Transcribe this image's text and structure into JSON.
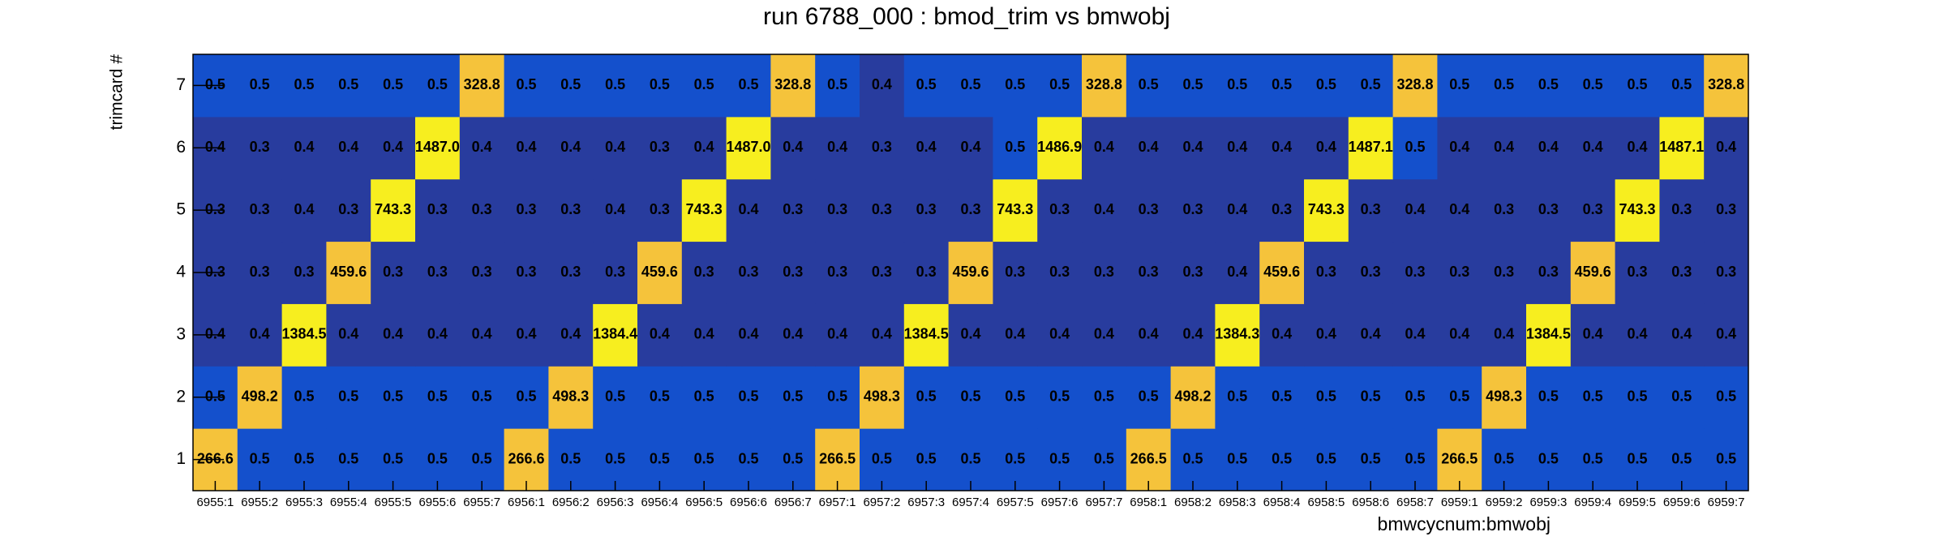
{
  "chart_data": {
    "type": "heatmap",
    "title": "run 6788_000 : bmod_trim vs bmwobj",
    "xlabel": "bmwcycnum:bmwobj",
    "ylabel": "trimcard #",
    "categories": [
      "6955:1",
      "6955:2",
      "6955:3",
      "6955:4",
      "6955:5",
      "6955:6",
      "6955:7",
      "6956:1",
      "6956:2",
      "6956:3",
      "6956:4",
      "6956:5",
      "6956:6",
      "6956:7",
      "6957:1",
      "6957:2",
      "6957:3",
      "6957:4",
      "6957:5",
      "6957:6",
      "6957:7",
      "6958:1",
      "6958:2",
      "6958:3",
      "6958:4",
      "6958:5",
      "6958:6",
      "6958:7",
      "6959:1",
      "6959:2",
      "6959:3",
      "6959:4",
      "6959:5",
      "6959:6",
      "6959:7"
    ],
    "y_categories": [
      "1",
      "2",
      "3",
      "4",
      "5",
      "6",
      "7"
    ],
    "palette": [
      "#283c9e",
      "#1450cc",
      "#f5c33b",
      "#f7ee1f"
    ],
    "values": [
      [
        266.6,
        0.5,
        0.5,
        0.5,
        0.5,
        0.5,
        0.5,
        266.6,
        0.5,
        0.5,
        0.5,
        0.5,
        0.5,
        0.5,
        266.5,
        0.5,
        0.5,
        0.5,
        0.5,
        0.5,
        0.5,
        266.5,
        0.5,
        0.5,
        0.5,
        0.5,
        0.5,
        0.5,
        266.5,
        0.5,
        0.5,
        0.5,
        0.5,
        0.5,
        0.5
      ],
      [
        0.5,
        498.2,
        0.5,
        0.5,
        0.5,
        0.5,
        0.5,
        0.5,
        498.3,
        0.5,
        0.5,
        0.5,
        0.5,
        0.5,
        0.5,
        498.3,
        0.5,
        0.5,
        0.5,
        0.5,
        0.5,
        0.5,
        498.2,
        0.5,
        0.5,
        0.5,
        0.5,
        0.5,
        0.5,
        498.3,
        0.5,
        0.5,
        0.5,
        0.5,
        0.5
      ],
      [
        0.4,
        0.4,
        1384.5,
        0.4,
        0.4,
        0.4,
        0.4,
        0.4,
        0.4,
        1384.4,
        0.4,
        0.4,
        0.4,
        0.4,
        0.4,
        0.4,
        1384.5,
        0.4,
        0.4,
        0.4,
        0.4,
        0.4,
        0.4,
        1384.3,
        0.4,
        0.4,
        0.4,
        0.4,
        0.4,
        0.4,
        1384.5,
        0.4,
        0.4,
        0.4,
        0.4
      ],
      [
        0.3,
        0.3,
        0.3,
        459.6,
        0.3,
        0.3,
        0.3,
        0.3,
        0.3,
        0.3,
        459.6,
        0.3,
        0.3,
        0.3,
        0.3,
        0.3,
        0.3,
        459.6,
        0.3,
        0.3,
        0.3,
        0.3,
        0.3,
        0.4,
        459.6,
        0.3,
        0.3,
        0.3,
        0.3,
        0.3,
        0.3,
        459.6,
        0.3,
        0.3,
        0.3
      ],
      [
        0.3,
        0.3,
        0.4,
        0.3,
        743.3,
        0.3,
        0.3,
        0.3,
        0.3,
        0.4,
        0.3,
        743.3,
        0.4,
        0.3,
        0.3,
        0.3,
        0.3,
        0.3,
        743.3,
        0.3,
        0.4,
        0.3,
        0.3,
        0.4,
        0.3,
        743.3,
        0.3,
        0.4,
        0.4,
        0.3,
        0.3,
        0.3,
        743.3,
        0.3,
        0.3
      ],
      [
        0.4,
        0.3,
        0.4,
        0.4,
        0.4,
        1487,
        0.4,
        0.4,
        0.4,
        0.4,
        0.3,
        0.4,
        1487,
        0.4,
        0.4,
        0.3,
        0.4,
        0.4,
        0.5,
        1486.9,
        0.4,
        0.4,
        0.4,
        0.4,
        0.4,
        0.4,
        1487.1,
        0.5,
        0.4,
        0.4,
        0.4,
        0.4,
        0.4,
        1487.1,
        0.4
      ],
      [
        0.5,
        0.5,
        0.5,
        0.5,
        0.5,
        0.5,
        328.8,
        0.5,
        0.5,
        0.5,
        0.5,
        0.5,
        0.5,
        328.8,
        0.5,
        0.4,
        0.5,
        0.5,
        0.5,
        0.5,
        328.8,
        0.5,
        0.5,
        0.5,
        0.5,
        0.5,
        0.5,
        328.8,
        0.5,
        0.5,
        0.5,
        0.5,
        0.5,
        0.5,
        328.8
      ]
    ],
    "value_labels": [
      [
        "266.6",
        "0.5",
        "0.5",
        "0.5",
        "0.5",
        "0.5",
        "0.5",
        "266.6",
        "0.5",
        "0.5",
        "0.5",
        "0.5",
        "0.5",
        "0.5",
        "266.5",
        "0.5",
        "0.5",
        "0.5",
        "0.5",
        "0.5",
        "0.5",
        "266.5",
        "0.5",
        "0.5",
        "0.5",
        "0.5",
        "0.5",
        "0.5",
        "266.5",
        "0.5",
        "0.5",
        "0.5",
        "0.5",
        "0.5",
        "0.5"
      ],
      [
        "0.5",
        "498.2",
        "0.5",
        "0.5",
        "0.5",
        "0.5",
        "0.5",
        "0.5",
        "498.3",
        "0.5",
        "0.5",
        "0.5",
        "0.5",
        "0.5",
        "0.5",
        "498.3",
        "0.5",
        "0.5",
        "0.5",
        "0.5",
        "0.5",
        "0.5",
        "498.2",
        "0.5",
        "0.5",
        "0.5",
        "0.5",
        "0.5",
        "0.5",
        "498.3",
        "0.5",
        "0.5",
        "0.5",
        "0.5",
        "0.5"
      ],
      [
        "0.4",
        "0.4",
        "1384.5",
        "0.4",
        "0.4",
        "0.4",
        "0.4",
        "0.4",
        "0.4",
        "1384.4",
        "0.4",
        "0.4",
        "0.4",
        "0.4",
        "0.4",
        "0.4",
        "1384.5",
        "0.4",
        "0.4",
        "0.4",
        "0.4",
        "0.4",
        "0.4",
        "1384.3",
        "0.4",
        "0.4",
        "0.4",
        "0.4",
        "0.4",
        "0.4",
        "1384.5",
        "0.4",
        "0.4",
        "0.4",
        "0.4"
      ],
      [
        "0.3",
        "0.3",
        "0.3",
        "459.6",
        "0.3",
        "0.3",
        "0.3",
        "0.3",
        "0.3",
        "0.3",
        "459.6",
        "0.3",
        "0.3",
        "0.3",
        "0.3",
        "0.3",
        "0.3",
        "459.6",
        "0.3",
        "0.3",
        "0.3",
        "0.3",
        "0.3",
        "0.4",
        "459.6",
        "0.3",
        "0.3",
        "0.3",
        "0.3",
        "0.3",
        "0.3",
        "459.6",
        "0.3",
        "0.3",
        "0.3"
      ],
      [
        "0.3",
        "0.3",
        "0.4",
        "0.3",
        "743.3",
        "0.3",
        "0.3",
        "0.3",
        "0.3",
        "0.4",
        "0.3",
        "743.3",
        "0.4",
        "0.3",
        "0.3",
        "0.3",
        "0.3",
        "0.3",
        "743.3",
        "0.3",
        "0.4",
        "0.3",
        "0.3",
        "0.4",
        "0.3",
        "743.3",
        "0.3",
        "0.4",
        "0.4",
        "0.3",
        "0.3",
        "0.3",
        "743.3",
        "0.3",
        "0.3"
      ],
      [
        "0.4",
        "0.3",
        "0.4",
        "0.4",
        "0.4",
        "1487.0",
        "0.4",
        "0.4",
        "0.4",
        "0.4",
        "0.3",
        "0.4",
        "1487.0",
        "0.4",
        "0.4",
        "0.3",
        "0.4",
        "0.4",
        "0.5",
        "1486.9",
        "0.4",
        "0.4",
        "0.4",
        "0.4",
        "0.4",
        "0.4",
        "1487.1",
        "0.5",
        "0.4",
        "0.4",
        "0.4",
        "0.4",
        "0.4",
        "1487.1",
        "0.4"
      ],
      [
        "0.5",
        "0.5",
        "0.5",
        "0.5",
        "0.5",
        "0.5",
        "328.8",
        "0.5",
        "0.5",
        "0.5",
        "0.5",
        "0.5",
        "0.5",
        "328.8",
        "0.5",
        "0.4",
        "0.5",
        "0.5",
        "0.5",
        "0.5",
        "328.8",
        "0.5",
        "0.5",
        "0.5",
        "0.5",
        "0.5",
        "0.5",
        "328.8",
        "0.5",
        "0.5",
        "0.5",
        "0.5",
        "0.5",
        "0.5",
        "328.8"
      ]
    ]
  }
}
